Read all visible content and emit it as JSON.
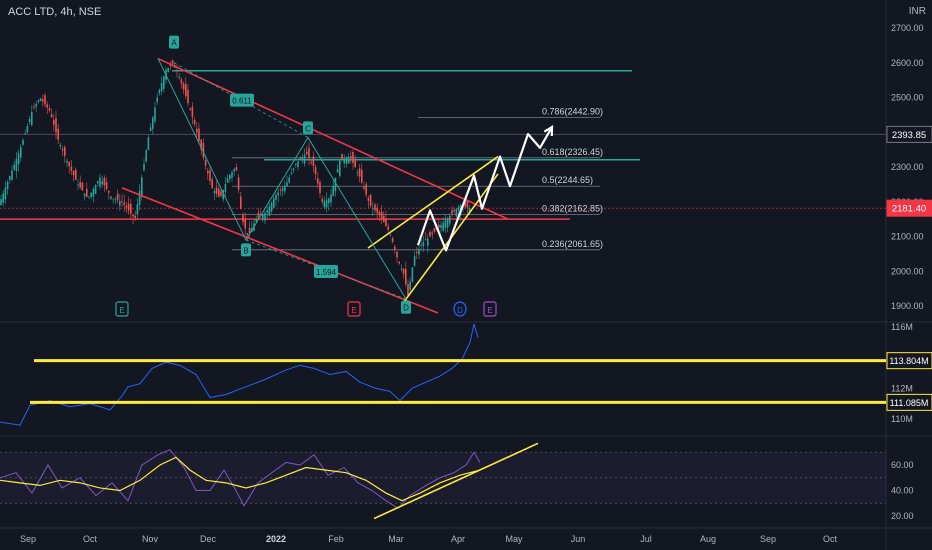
{
  "header": {
    "title": "ACC LTD, 4h, NSE",
    "currency": "INR"
  },
  "chart_data": [
    {
      "type": "candlestick",
      "y_ticks": [
        "2700.00",
        "2600.00",
        "2500.00",
        "2400.00",
        "2300.00",
        "2200.00",
        "2100.00",
        "2000.00",
        "1900.00"
      ],
      "ylim": [
        1880,
        2745
      ],
      "price_badges": [
        {
          "label": "2393.85",
          "value": 2393.85,
          "color": "#131722"
        },
        {
          "label": "2181.40",
          "value": 2181.4,
          "color": "#f23645"
        }
      ],
      "x_ticks": [
        "Sep",
        "Oct",
        "Nov",
        "Dec",
        "2022",
        "Feb",
        "Mar",
        "Apr",
        "May",
        "Jun",
        "Jul",
        "Aug",
        "Sep",
        "Oct"
      ],
      "price_path": [
        [
          0,
          2200
        ],
        [
          8,
          2260
        ],
        [
          20,
          2350
        ],
        [
          32,
          2460
        ],
        [
          40,
          2500
        ],
        [
          50,
          2460
        ],
        [
          58,
          2380
        ],
        [
          68,
          2310
        ],
        [
          78,
          2250
        ],
        [
          88,
          2210
        ],
        [
          100,
          2270
        ],
        [
          112,
          2210
        ],
        [
          122,
          2200
        ],
        [
          135,
          2150
        ],
        [
          148,
          2380
        ],
        [
          158,
          2510
        ],
        [
          166,
          2580
        ],
        [
          174,
          2600
        ],
        [
          184,
          2520
        ],
        [
          194,
          2430
        ],
        [
          204,
          2320
        ],
        [
          212,
          2240
        ],
        [
          220,
          2210
        ],
        [
          228,
          2270
        ],
        [
          236,
          2300
        ],
        [
          242,
          2150
        ],
        [
          248,
          2100
        ],
        [
          256,
          2150
        ],
        [
          266,
          2170
        ],
        [
          276,
          2220
        ],
        [
          286,
          2250
        ],
        [
          296,
          2310
        ],
        [
          306,
          2340
        ],
        [
          314,
          2300
        ],
        [
          322,
          2200
        ],
        [
          330,
          2210
        ],
        [
          340,
          2320
        ],
        [
          350,
          2330
        ],
        [
          360,
          2270
        ],
        [
          370,
          2190
        ],
        [
          380,
          2160
        ],
        [
          390,
          2110
        ],
        [
          398,
          2030
        ],
        [
          404,
          1990
        ],
        [
          408,
          1930
        ],
        [
          414,
          2040
        ],
        [
          422,
          2080
        ],
        [
          430,
          2100
        ],
        [
          440,
          2130
        ],
        [
          450,
          2160
        ],
        [
          460,
          2190
        ],
        [
          470,
          2181
        ]
      ],
      "fib_levels": [
        {
          "label": "0.786(2442.90)",
          "value": 2442.9
        },
        {
          "label": "0.618(2326.45)",
          "value": 2326.45
        },
        {
          "label": "0.5(2244.65)",
          "value": 2244.65
        },
        {
          "label": "0.382(2162.85)",
          "value": 2162.85
        },
        {
          "label": "0.236(2061.65)",
          "value": 2061.65
        }
      ],
      "waves": [
        {
          "label": "A",
          "x": 174,
          "value": 2600,
          "label_value": 2658,
          "color": "#26a69a"
        },
        {
          "label": "B",
          "x": 246,
          "value": 2090,
          "label_value": 2060,
          "color": "#26a69a"
        },
        {
          "label": "C",
          "x": 308,
          "value": 2385,
          "label_value": 2411,
          "color": "#26a69a"
        },
        {
          "label": "D",
          "x": 406,
          "value": 1920,
          "label_value": 1895,
          "color": "#26a69a"
        }
      ],
      "ratios": [
        {
          "label": "0.611",
          "x": 242,
          "value": 2491
        },
        {
          "label": "1.594",
          "x": 326,
          "value": 1998
        }
      ],
      "events": [
        {
          "label": "E",
          "x": 122,
          "color": "#26a69a"
        },
        {
          "label": "E",
          "x": 354,
          "color": "#f23645"
        },
        {
          "label": "D",
          "x": 460,
          "color": "#2962ff"
        },
        {
          "label": "E",
          "x": 490,
          "color": "#9c4dcc"
        }
      ],
      "horizontal_levels": [
        {
          "value": 2577,
          "color": "#26a69a",
          "x_start": 172,
          "x_end": 632
        },
        {
          "value": 2321,
          "color": "#26a69a",
          "x_start": 264,
          "x_end": 640
        },
        {
          "value": 2150,
          "color": "#f23645",
          "x_start": 0,
          "x_end": 570
        }
      ],
      "trendlines": [
        {
          "from": [
            158,
            2612
          ],
          "to": [
            508,
            2150
          ],
          "color": "#f23645"
        },
        {
          "from": [
            122,
            2240
          ],
          "to": [
            438,
            1880
          ],
          "color": "#f23645"
        },
        {
          "from": [
            368,
            2067
          ],
          "to": [
            498,
            2330
          ],
          "color": "#ffeb3b"
        },
        {
          "from": [
            404,
            1912
          ],
          "to": [
            498,
            2280
          ],
          "color": "#ffeb3b"
        }
      ],
      "projection": [
        [
          418,
          2075
        ],
        [
          430,
          2175
        ],
        [
          446,
          2060
        ],
        [
          474,
          2275
        ],
        [
          482,
          2180
        ],
        [
          500,
          2330
        ],
        [
          510,
          2245
        ],
        [
          528,
          2395
        ],
        [
          540,
          2355
        ],
        [
          552,
          2415
        ]
      ]
    },
    {
      "type": "line",
      "series_name": "",
      "y_ticks": [
        "116M",
        "112M",
        "110M"
      ],
      "levels": [
        {
          "label": "113.804M",
          "value": 113.804
        },
        {
          "label": "111.085M",
          "value": 111.085
        }
      ],
      "values": [
        [
          0,
          109.8
        ],
        [
          20,
          109.6
        ],
        [
          30,
          110.9
        ],
        [
          50,
          111.2
        ],
        [
          70,
          110.8
        ],
        [
          90,
          111.0
        ],
        [
          110,
          110.6
        ],
        [
          122,
          111.5
        ],
        [
          128,
          112.1
        ],
        [
          140,
          112.3
        ],
        [
          152,
          113.3
        ],
        [
          166,
          113.7
        ],
        [
          180,
          113.5
        ],
        [
          196,
          112.9
        ],
        [
          210,
          111.4
        ],
        [
          226,
          111.6
        ],
        [
          246,
          112.1
        ],
        [
          266,
          112.6
        ],
        [
          286,
          113.2
        ],
        [
          300,
          113.5
        ],
        [
          314,
          113.3
        ],
        [
          330,
          112.9
        ],
        [
          346,
          113.1
        ],
        [
          360,
          112.4
        ],
        [
          376,
          112.0
        ],
        [
          390,
          111.8
        ],
        [
          400,
          111.2
        ],
        [
          412,
          112.0
        ],
        [
          426,
          112.4
        ],
        [
          440,
          112.8
        ],
        [
          452,
          113.3
        ],
        [
          462,
          113.9
        ],
        [
          470,
          115.0
        ],
        [
          474,
          116.2
        ],
        [
          478,
          115.3
        ]
      ]
    },
    {
      "type": "line",
      "series": [
        {
          "name": "",
          "color": "#7e57c2",
          "values": [
            [
              0,
              50
            ],
            [
              16,
              54
            ],
            [
              32,
              38
            ],
            [
              48,
              60
            ],
            [
              62,
              42
            ],
            [
              80,
              50
            ],
            [
              96,
              36
            ],
            [
              112,
              46
            ],
            [
              128,
              32
            ],
            [
              142,
              60
            ],
            [
              158,
              68
            ],
            [
              170,
              72
            ],
            [
              184,
              58
            ],
            [
              196,
              40
            ],
            [
              210,
              40
            ],
            [
              224,
              56
            ],
            [
              236,
              40
            ],
            [
              244,
              28
            ],
            [
              258,
              46
            ],
            [
              272,
              54
            ],
            [
              286,
              62
            ],
            [
              300,
              60
            ],
            [
              314,
              68
            ],
            [
              328,
              52
            ],
            [
              344,
              58
            ],
            [
              358,
              46
            ],
            [
              372,
              40
            ],
            [
              386,
              32
            ],
            [
              398,
              26
            ],
            [
              410,
              36
            ],
            [
              426,
              44
            ],
            [
              440,
              50
            ],
            [
              454,
              54
            ],
            [
              466,
              60
            ],
            [
              474,
              70
            ],
            [
              480,
              62
            ]
          ]
        },
        {
          "name": "",
          "color": "#ffeb3b",
          "values": [
            [
              0,
              48
            ],
            [
              20,
              46
            ],
            [
              40,
              44
            ],
            [
              60,
              48
            ],
            [
              80,
              46
            ],
            [
              100,
              42
            ],
            [
              120,
              40
            ],
            [
              140,
              48
            ],
            [
              160,
              60
            ],
            [
              176,
              66
            ],
            [
              190,
              56
            ],
            [
              206,
              48
            ],
            [
              226,
              46
            ],
            [
              246,
              42
            ],
            [
              266,
              46
            ],
            [
              286,
              52
            ],
            [
              306,
              58
            ],
            [
              326,
              56
            ],
            [
              346,
              54
            ],
            [
              366,
              48
            ],
            [
              386,
              38
            ],
            [
              402,
              32
            ],
            [
              420,
              38
            ],
            [
              440,
              46
            ],
            [
              460,
              52
            ],
            [
              480,
              56
            ]
          ]
        }
      ],
      "y_ticks": [
        "60.00",
        "40.00",
        "20.00"
      ],
      "bands": [
        70,
        50,
        30
      ],
      "trendline": {
        "from": [
          374,
          18
        ],
        "to": [
          538,
          77
        ]
      }
    }
  ]
}
